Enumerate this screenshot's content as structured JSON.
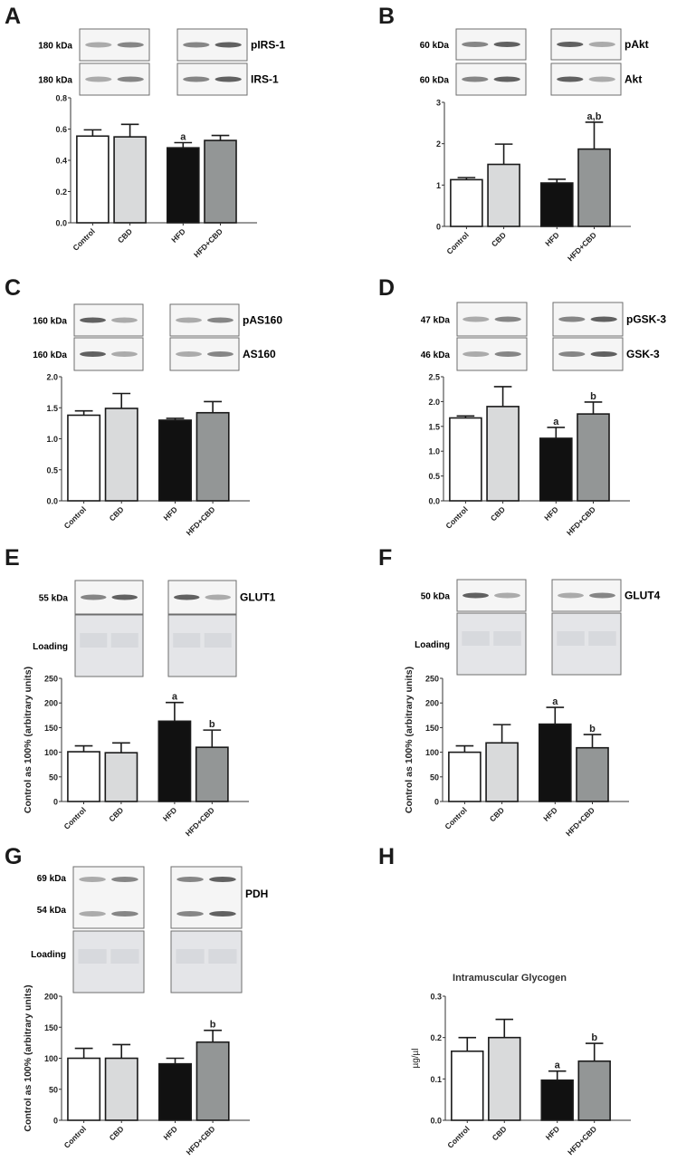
{
  "figure": {
    "groups": [
      "Control",
      "CBD",
      "HFD",
      "HFD+CBD"
    ],
    "bar_colors": [
      "#ffffff",
      "#d9dadb",
      "#111111",
      "#939696"
    ],
    "outline_color": "#1a1a1a"
  },
  "chart_data": [
    {
      "panel": "A",
      "type": "bar",
      "categories": [
        "Control",
        "CBD",
        "HFD",
        "HFD+CBD"
      ],
      "values": [
        0.555,
        0.55,
        0.48,
        0.527
      ],
      "errors": [
        0.04,
        0.08,
        0.033,
        0.032
      ],
      "annotations": [
        "",
        "",
        "a",
        ""
      ],
      "ylabel": "",
      "ylim": [
        0,
        0.8
      ],
      "yticks": [
        "0.0",
        "0.2",
        "0.4",
        "0.6",
        "0.8"
      ],
      "blots": [
        {
          "kda": "180 kDa",
          "label": "pIRS-1"
        },
        {
          "kda": "180 kDa",
          "label": "IRS-1"
        }
      ]
    },
    {
      "panel": "B",
      "type": "bar",
      "categories": [
        "Control",
        "CBD",
        "HFD",
        "HFD+CBD"
      ],
      "values": [
        1.13,
        1.5,
        1.05,
        1.87
      ],
      "errors": [
        0.05,
        0.49,
        0.09,
        0.65
      ],
      "annotations": [
        "",
        "",
        "",
        "a,b"
      ],
      "ylabel": "",
      "ylim": [
        0,
        3
      ],
      "yticks": [
        "0",
        "1",
        "2",
        "3"
      ],
      "blots": [
        {
          "kda": "60 kDa",
          "label": "pAkt"
        },
        {
          "kda": "60 kDa",
          "label": "Akt"
        }
      ]
    },
    {
      "panel": "C",
      "type": "bar",
      "categories": [
        "Control",
        "CBD",
        "HFD",
        "HFD+CBD"
      ],
      "values": [
        1.38,
        1.49,
        1.3,
        1.42
      ],
      "errors": [
        0.07,
        0.24,
        0.03,
        0.18
      ],
      "annotations": [
        "",
        "",
        "",
        ""
      ],
      "ylabel": "",
      "ylim": [
        0,
        2.0
      ],
      "yticks": [
        "0.0",
        "0.5",
        "1.0",
        "1.5",
        "2.0"
      ],
      "blots": [
        {
          "kda": "160 kDa",
          "label": "pAS160"
        },
        {
          "kda": "160 kDa",
          "label": "AS160"
        }
      ]
    },
    {
      "panel": "D",
      "type": "bar",
      "categories": [
        "Control",
        "CBD",
        "HFD",
        "HFD+CBD"
      ],
      "values": [
        1.67,
        1.9,
        1.26,
        1.75
      ],
      "errors": [
        0.04,
        0.4,
        0.22,
        0.24
      ],
      "annotations": [
        "",
        "",
        "a",
        "b"
      ],
      "ylabel": "",
      "ylim": [
        0,
        2.5
      ],
      "yticks": [
        "0.0",
        "0.5",
        "1.0",
        "1.5",
        "2.0",
        "2.5"
      ],
      "blots": [
        {
          "kda": "47 kDa",
          "label": "pGSK-3"
        },
        {
          "kda": "46 kDa",
          "label": "GSK-3"
        }
      ]
    },
    {
      "panel": "E",
      "type": "bar",
      "categories": [
        "Control",
        "CBD",
        "HFD",
        "HFD+CBD"
      ],
      "values": [
        101,
        99,
        163,
        110
      ],
      "errors": [
        12,
        20,
        38,
        35
      ],
      "annotations": [
        "",
        "",
        "a",
        "b"
      ],
      "ylabel": "Control as 100% (arbitrary units)",
      "ylim": [
        0,
        250
      ],
      "yticks": [
        "0",
        "50",
        "100",
        "150",
        "200",
        "250"
      ],
      "blots": [
        {
          "kda": "55 kDa",
          "label": "GLUT1"
        },
        {
          "kda": "",
          "label": "Loading"
        }
      ]
    },
    {
      "panel": "F",
      "type": "bar",
      "categories": [
        "Control",
        "CBD",
        "HFD",
        "HFD+CBD"
      ],
      "values": [
        100,
        119,
        157,
        109
      ],
      "errors": [
        13,
        37,
        34,
        27
      ],
      "annotations": [
        "",
        "",
        "a",
        "b"
      ],
      "ylabel": "Control as 100% (arbitrary units)",
      "ylim": [
        0,
        250
      ],
      "yticks": [
        "0",
        "50",
        "100",
        "150",
        "200",
        "250"
      ],
      "blots": [
        {
          "kda": "50 kDa",
          "label": "GLUT4"
        },
        {
          "kda": "",
          "label": "Loading"
        }
      ]
    },
    {
      "panel": "G",
      "type": "bar",
      "categories": [
        "Control",
        "CBD",
        "HFD",
        "HFD+CBD"
      ],
      "values": [
        100,
        100,
        91,
        126
      ],
      "errors": [
        16,
        22,
        9,
        19
      ],
      "annotations": [
        "",
        "",
        "",
        "b"
      ],
      "ylabel": "Control as 100% (arbitrary units)",
      "ylim": [
        0,
        200
      ],
      "yticks": [
        "0",
        "50",
        "100",
        "150",
        "200"
      ],
      "blots": [
        {
          "kda": "69 kDa",
          "label": "PDH"
        },
        {
          "kda": "54 kDa",
          "label": ""
        },
        {
          "kda": "",
          "label": "Loading"
        }
      ]
    },
    {
      "panel": "H",
      "type": "bar",
      "title": "Intramuscular Glycogen",
      "categories": [
        "Control",
        "CBD",
        "HFD",
        "HFD+CBD"
      ],
      "values": [
        0.167,
        0.2,
        0.097,
        0.143
      ],
      "errors": [
        0.033,
        0.044,
        0.022,
        0.043
      ],
      "annotations": [
        "",
        "",
        "a",
        "b"
      ],
      "ylabel": "µg/µl",
      "ylim": [
        0,
        0.3
      ],
      "yticks": [
        "0.0",
        "0.1",
        "0.2",
        "0.3"
      ],
      "blots": []
    }
  ]
}
